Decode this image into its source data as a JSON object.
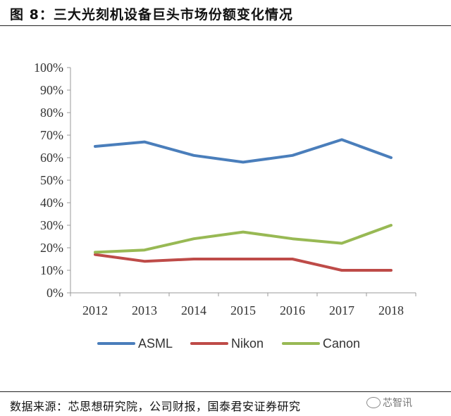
{
  "figure": {
    "title": "图 8：三大光刻机设备巨头市场份额变化情况",
    "source": "数据来源：芯思想研究院，公司财报，国泰君安证券研究",
    "watermark": "芯智讯"
  },
  "chart_data": {
    "type": "line",
    "x": [
      "2012",
      "2013",
      "2014",
      "2015",
      "2016",
      "2017",
      "2018"
    ],
    "series": [
      {
        "name": "ASML",
        "values": [
          65,
          67,
          61,
          58,
          61,
          68,
          60
        ],
        "color": "#4a7ebb"
      },
      {
        "name": "Nikon",
        "values": [
          17,
          14,
          15,
          15,
          15,
          10,
          10
        ],
        "color": "#be4b48"
      },
      {
        "name": "Canon",
        "values": [
          18,
          19,
          24,
          27,
          24,
          22,
          30
        ],
        "color": "#98b954"
      }
    ],
    "ylim": [
      0,
      100
    ],
    "yticks": [
      "0%",
      "10%",
      "20%",
      "30%",
      "40%",
      "50%",
      "60%",
      "70%",
      "80%",
      "90%",
      "100%"
    ],
    "grid": false,
    "legend": "bottom"
  }
}
